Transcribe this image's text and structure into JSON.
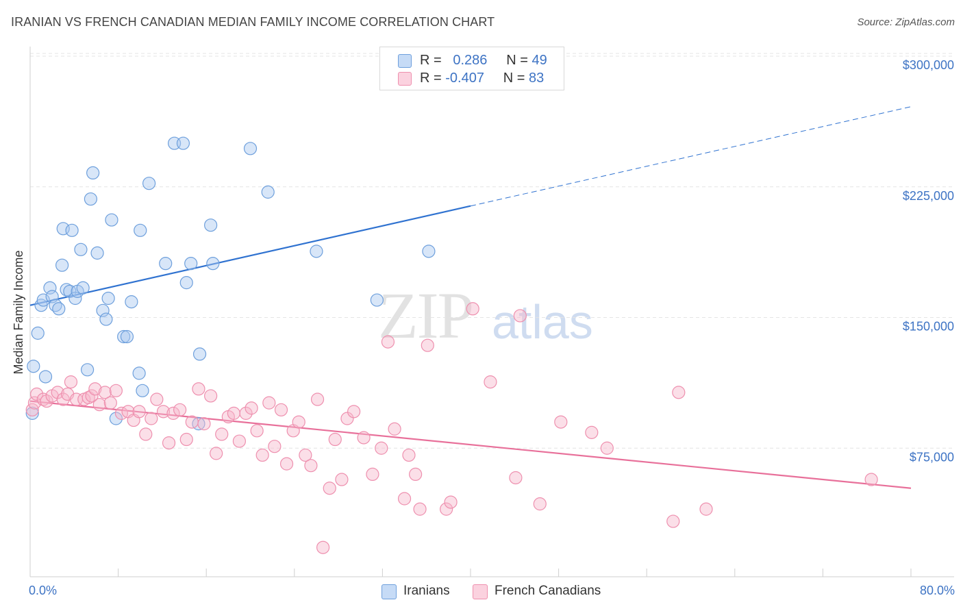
{
  "title": "IRANIAN VS FRENCH CANADIAN MEDIAN FAMILY INCOME CORRELATION CHART",
  "source": "Source: ZipAtlas.com",
  "watermark": {
    "zip": "ZIP",
    "atlas": "atlas"
  },
  "legend": {
    "rows": [
      {
        "r_label": "R = ",
        "r_value": "0.286",
        "n_label": "N = ",
        "n_value": "49",
        "color": "#a9c8f0"
      },
      {
        "r_label": "R = ",
        "r_value": "-0.407",
        "n_label": "N = ",
        "n_value": "83",
        "color": "#f7b9cd"
      }
    ]
  },
  "bottom_legend": [
    {
      "label": "Iranians",
      "color": "#a9c8f0"
    },
    {
      "label": "French Canadians",
      "color": "#f7b9cd"
    }
  ],
  "chart_data": {
    "type": "scatter",
    "xlabel": "",
    "ylabel": "Median Family Income",
    "xlim": [
      0,
      80
    ],
    "ylim": [
      0,
      310000
    ],
    "x_ticks_labels": [
      "0.0%",
      "80.0%"
    ],
    "y_ticks": [
      75000,
      150000,
      225000,
      300000
    ],
    "y_tick_labels": [
      "$75,000",
      "$150,000",
      "$225,000",
      "$300,000"
    ],
    "grid": true,
    "legend_position": "top-center",
    "series": [
      {
        "name": "Iranians",
        "color": "#a9c8f0",
        "edge": "#6d9fdc",
        "trend": {
          "x0": 0,
          "y0": 157000,
          "x1": 80,
          "y1": 271000,
          "solid_until": 40,
          "color": "#2f72d0"
        },
        "points": [
          [
            0.2,
            95000
          ],
          [
            0.3,
            122000
          ],
          [
            0.7,
            141000
          ],
          [
            1.0,
            157000
          ],
          [
            1.2,
            160000
          ],
          [
            1.4,
            116000
          ],
          [
            1.8,
            167000
          ],
          [
            2.0,
            162000
          ],
          [
            2.3,
            157000
          ],
          [
            2.6,
            155000
          ],
          [
            2.9,
            180000
          ],
          [
            3.0,
            201000
          ],
          [
            3.3,
            166000
          ],
          [
            3.6,
            165000
          ],
          [
            3.8,
            200000
          ],
          [
            4.1,
            161000
          ],
          [
            4.3,
            165000
          ],
          [
            4.6,
            189000
          ],
          [
            4.8,
            167000
          ],
          [
            5.2,
            120000
          ],
          [
            5.5,
            218000
          ],
          [
            5.7,
            233000
          ],
          [
            6.1,
            187000
          ],
          [
            6.6,
            154000
          ],
          [
            6.9,
            149000
          ],
          [
            7.1,
            161000
          ],
          [
            7.4,
            206000
          ],
          [
            7.8,
            92000
          ],
          [
            8.5,
            139000
          ],
          [
            8.8,
            139000
          ],
          [
            9.2,
            159000
          ],
          [
            9.9,
            118000
          ],
          [
            10.0,
            200000
          ],
          [
            10.2,
            108000
          ],
          [
            10.8,
            227000
          ],
          [
            12.3,
            181000
          ],
          [
            13.1,
            250000
          ],
          [
            13.9,
            250000
          ],
          [
            14.2,
            170000
          ],
          [
            14.6,
            181000
          ],
          [
            15.3,
            89000
          ],
          [
            15.4,
            129000
          ],
          [
            16.4,
            203000
          ],
          [
            16.6,
            181000
          ],
          [
            20.0,
            247000
          ],
          [
            21.6,
            222000
          ],
          [
            26.0,
            188000
          ],
          [
            31.5,
            160000
          ],
          [
            36.2,
            188000
          ]
        ]
      },
      {
        "name": "French Canadians",
        "color": "#f7b9cd",
        "edge": "#ee8fae",
        "trend": {
          "x0": 0,
          "y0": 102000,
          "x1": 80,
          "y1": 52000,
          "solid_until": 80,
          "color": "#e8709a"
        },
        "points": [
          [
            0.2,
            97000
          ],
          [
            0.4,
            101000
          ],
          [
            0.6,
            106000
          ],
          [
            1.2,
            103000
          ],
          [
            1.5,
            102000
          ],
          [
            2.0,
            105000
          ],
          [
            2.5,
            107000
          ],
          [
            3.0,
            103000
          ],
          [
            3.4,
            106000
          ],
          [
            3.7,
            113000
          ],
          [
            4.2,
            103000
          ],
          [
            4.9,
            103000
          ],
          [
            5.3,
            104000
          ],
          [
            5.6,
            105000
          ],
          [
            5.9,
            109000
          ],
          [
            6.3,
            100000
          ],
          [
            6.8,
            107000
          ],
          [
            7.3,
            101000
          ],
          [
            7.8,
            108000
          ],
          [
            8.3,
            95000
          ],
          [
            8.9,
            96000
          ],
          [
            9.4,
            91000
          ],
          [
            9.9,
            96000
          ],
          [
            10.5,
            83000
          ],
          [
            11.0,
            92000
          ],
          [
            11.5,
            103000
          ],
          [
            12.1,
            96000
          ],
          [
            12.6,
            78000
          ],
          [
            13.0,
            95000
          ],
          [
            13.6,
            97000
          ],
          [
            14.2,
            80000
          ],
          [
            14.7,
            90000
          ],
          [
            15.3,
            109000
          ],
          [
            15.8,
            89000
          ],
          [
            16.4,
            105000
          ],
          [
            16.9,
            72000
          ],
          [
            17.4,
            83000
          ],
          [
            18.0,
            93000
          ],
          [
            18.5,
            95000
          ],
          [
            19.0,
            79000
          ],
          [
            19.6,
            95000
          ],
          [
            20.1,
            98000
          ],
          [
            20.6,
            85000
          ],
          [
            21.1,
            71000
          ],
          [
            21.7,
            101000
          ],
          [
            22.2,
            76000
          ],
          [
            22.8,
            97000
          ],
          [
            23.3,
            66000
          ],
          [
            23.9,
            85000
          ],
          [
            24.4,
            90000
          ],
          [
            25.0,
            71000
          ],
          [
            25.5,
            65000
          ],
          [
            26.1,
            103000
          ],
          [
            26.6,
            18000
          ],
          [
            27.2,
            52000
          ],
          [
            27.7,
            80000
          ],
          [
            28.3,
            57000
          ],
          [
            28.8,
            92000
          ],
          [
            29.4,
            96000
          ],
          [
            30.3,
            81000
          ],
          [
            31.1,
            60000
          ],
          [
            31.9,
            75000
          ],
          [
            32.5,
            136000
          ],
          [
            33.1,
            86000
          ],
          [
            34.0,
            46000
          ],
          [
            34.4,
            71000
          ],
          [
            35.0,
            60000
          ],
          [
            35.4,
            40000
          ],
          [
            36.1,
            134000
          ],
          [
            37.8,
            40000
          ],
          [
            38.2,
            44000
          ],
          [
            40.2,
            155000
          ],
          [
            41.8,
            113000
          ],
          [
            44.1,
            58000
          ],
          [
            44.5,
            151000
          ],
          [
            46.3,
            43000
          ],
          [
            48.2,
            90000
          ],
          [
            51.0,
            84000
          ],
          [
            52.4,
            75000
          ],
          [
            58.4,
            33000
          ],
          [
            58.9,
            107000
          ],
          [
            61.4,
            40000
          ],
          [
            76.4,
            57000
          ]
        ]
      }
    ]
  }
}
